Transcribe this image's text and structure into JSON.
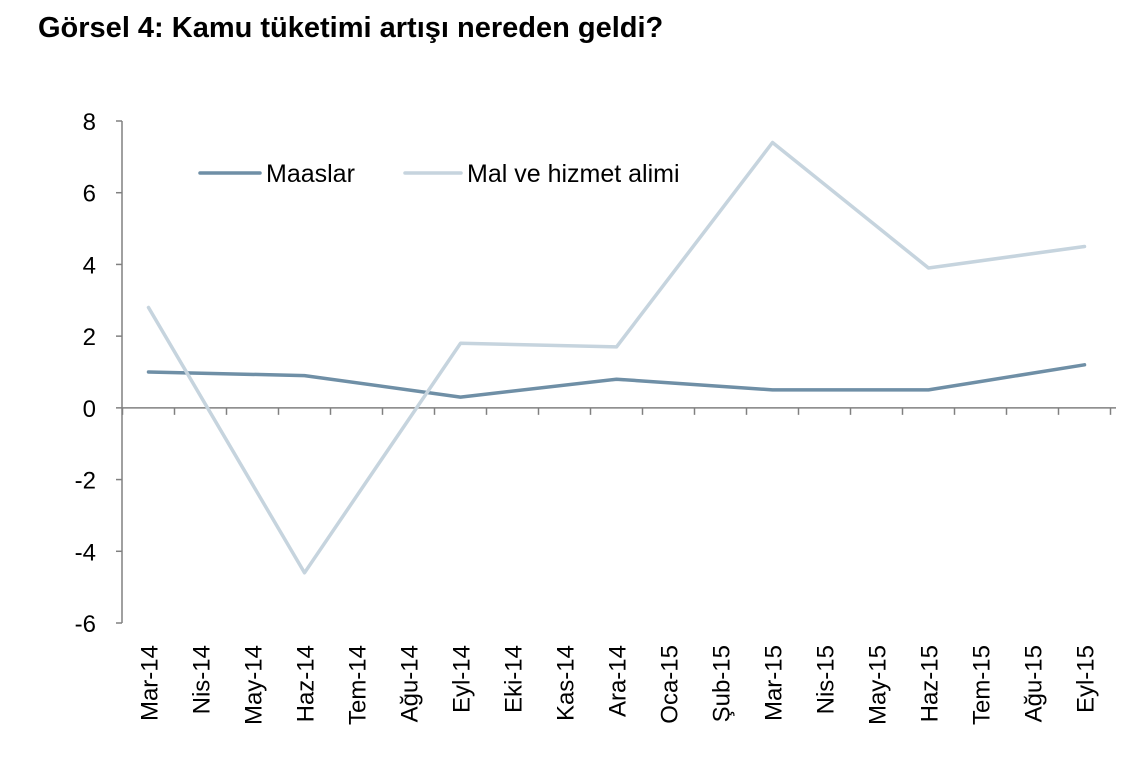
{
  "title": "Görsel 4: Kamu tüketimi artışı nereden geldi?",
  "chart_data": {
    "type": "line",
    "title": "Görsel 4: Kamu tüketimi artışı nereden geldi?",
    "categories": [
      "Mar-14",
      "Nis-14",
      "May-14",
      "Haz-14",
      "Tem-14",
      "Ağu-14",
      "Eyl-14",
      "Eki-14",
      "Kas-14",
      "Ara-14",
      "Oca-15",
      "Şub-15",
      "Mar-15",
      "Nis-15",
      "May-15",
      "Haz-15",
      "Tem-15",
      "Ağu-15",
      "Eyl-15"
    ],
    "series": [
      {
        "name": "Maaslar",
        "color": "#6f8fa6",
        "points": [
          {
            "x": "Mar-14",
            "y": 1.0
          },
          {
            "x": "Haz-14",
            "y": 0.9
          },
          {
            "x": "Eyl-14",
            "y": 0.3
          },
          {
            "x": "Ara-14",
            "y": 0.8
          },
          {
            "x": "Mar-15",
            "y": 0.5
          },
          {
            "x": "Haz-15",
            "y": 0.5
          },
          {
            "x": "Eyl-15",
            "y": 1.2
          }
        ]
      },
      {
        "name": "Mal ve hizmet alimi",
        "color": "#c6d4de",
        "points": [
          {
            "x": "Mar-14",
            "y": 2.8
          },
          {
            "x": "Haz-14",
            "y": -4.6
          },
          {
            "x": "Eyl-14",
            "y": 1.8
          },
          {
            "x": "Ara-14",
            "y": 1.7
          },
          {
            "x": "Mar-15",
            "y": 7.4
          },
          {
            "x": "Haz-15",
            "y": 3.9
          },
          {
            "x": "Eyl-15",
            "y": 4.5
          }
        ]
      }
    ],
    "yticks": [
      8,
      6,
      4,
      2,
      0,
      -2,
      -4,
      -6
    ],
    "ylim": [
      -6,
      8
    ],
    "grid": false,
    "legend_position": "top-left"
  }
}
